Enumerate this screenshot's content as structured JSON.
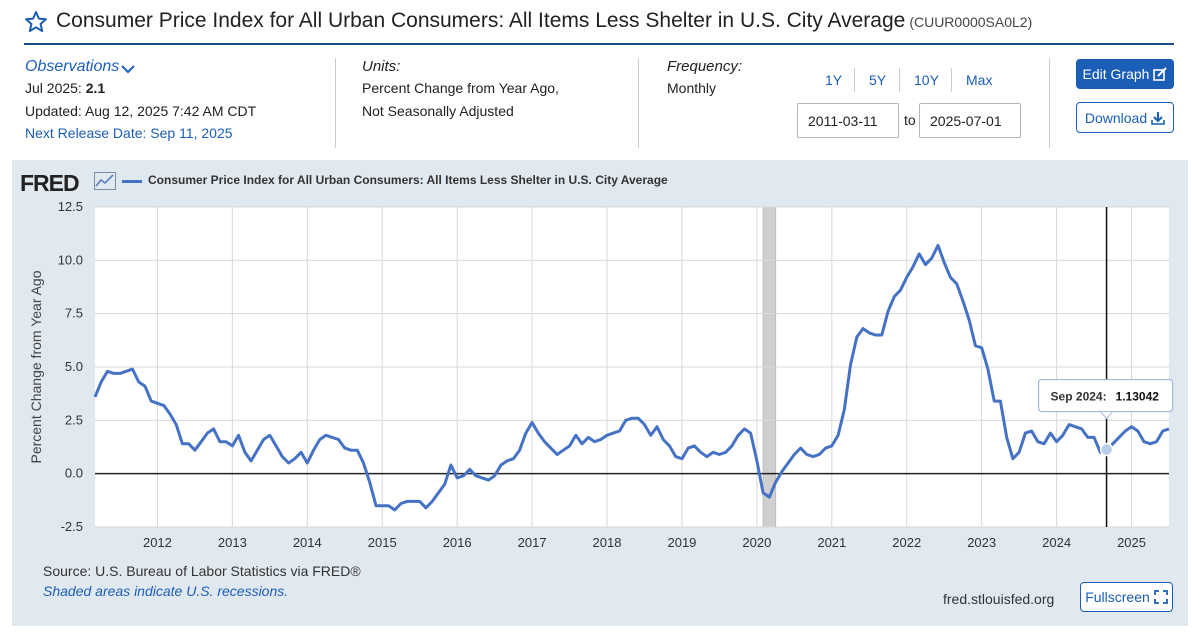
{
  "header": {
    "title": "Consumer Price Index for All Urban Consumers: All Items Less Shelter in U.S. City Average",
    "series_id": "(CUUR0000SA0L2)"
  },
  "observations": {
    "link_label": "Observations",
    "date_label": "Jul 2025:",
    "value": "2.1",
    "updated": "Updated: Aug 12, 2025 7:42 AM CDT",
    "next_release": "Next Release Date: Sep 11, 2025"
  },
  "units": {
    "heading": "Units:",
    "line1": "Percent Change from Year Ago,",
    "line2": "Not Seasonally Adjusted"
  },
  "frequency": {
    "heading": "Frequency:",
    "value": "Monthly"
  },
  "range": {
    "buttons": [
      "1Y",
      "5Y",
      "10Y",
      "Max"
    ],
    "start": "2011-03-11",
    "to_label": "to",
    "end": "2025-07-01"
  },
  "actions": {
    "edit_label": "Edit Graph",
    "download_label": "Download",
    "fullscreen_label": "Fullscreen"
  },
  "footer": {
    "source": "Source: U.S. Bureau of Labor Statistics via FRED®",
    "shaded_note": "Shaded areas indicate U.S. recessions.",
    "url": "fred.stlouisfed.org"
  },
  "logo_text": "FRED",
  "colors": {
    "accent": "#1b5eb8",
    "series": "#4572c4",
    "panel": "#e1e9f0"
  },
  "chart_data": {
    "type": "line",
    "title": "Consumer Price Index for All Urban Consumers: All Items Less Shelter in U.S. City Average",
    "xlabel": "",
    "ylabel": "Percent Change from Year Ago",
    "ylim": [
      -2.5,
      12.5
    ],
    "yticks": [
      "12.5",
      "10.0",
      "7.5",
      "5.0",
      "2.5",
      "0.0",
      "-2.5"
    ],
    "x_start": "2011-03",
    "x_end": "2025-07",
    "xtick_labels": [
      "2012",
      "2013",
      "2014",
      "2015",
      "2016",
      "2017",
      "2018",
      "2019",
      "2020",
      "2021",
      "2022",
      "2023",
      "2024",
      "2025"
    ],
    "recessions": [
      {
        "start": "2020-02",
        "end": "2020-04"
      }
    ],
    "tooltip": {
      "label": "Sep 2024:",
      "value": "1.13042",
      "date": "2024-09"
    },
    "series": [
      {
        "name": "Consumer Price Index for All Urban Consumers: All Items Less Shelter in U.S. City Average",
        "start": "2011-03",
        "values": [
          3.6,
          4.3,
          4.8,
          4.7,
          4.7,
          4.8,
          4.9,
          4.3,
          4.1,
          3.4,
          3.3,
          3.2,
          2.8,
          2.3,
          1.4,
          1.4,
          1.1,
          1.5,
          1.9,
          2.1,
          1.5,
          1.5,
          1.3,
          1.8,
          1.0,
          0.6,
          1.1,
          1.6,
          1.8,
          1.3,
          0.8,
          0.5,
          0.7,
          1.0,
          0.5,
          1.1,
          1.6,
          1.8,
          1.7,
          1.6,
          1.2,
          1.1,
          1.1,
          0.5,
          -0.4,
          -1.5,
          -1.5,
          -1.5,
          -1.7,
          -1.4,
          -1.3,
          -1.3,
          -1.3,
          -1.6,
          -1.3,
          -0.9,
          -0.5,
          0.4,
          -0.2,
          -0.1,
          0.2,
          -0.1,
          -0.2,
          -0.3,
          -0.1,
          0.4,
          0.6,
          0.7,
          1.1,
          1.9,
          2.4,
          1.9,
          1.5,
          1.2,
          0.9,
          1.1,
          1.3,
          1.8,
          1.4,
          1.7,
          1.5,
          1.6,
          1.8,
          1.9,
          2.0,
          2.5,
          2.6,
          2.6,
          2.3,
          1.8,
          2.2,
          1.6,
          1.3,
          0.8,
          0.7,
          1.2,
          1.3,
          1.0,
          0.8,
          1.0,
          0.9,
          1.0,
          1.3,
          1.8,
          2.1,
          1.9,
          0.6,
          -0.9,
          -1.1,
          -0.4,
          0.1,
          0.5,
          0.9,
          1.2,
          0.9,
          0.8,
          0.9,
          1.2,
          1.3,
          1.8,
          3.0,
          5.1,
          6.4,
          6.8,
          6.6,
          6.5,
          6.5,
          7.6,
          8.3,
          8.6,
          9.2,
          9.7,
          10.3,
          9.8,
          10.1,
          10.7,
          9.9,
          9.2,
          8.9,
          8.1,
          7.2,
          6.0,
          5.9,
          4.9,
          3.4,
          3.4,
          1.7,
          0.7,
          1.0,
          1.9,
          2.0,
          1.5,
          1.4,
          1.9,
          1.5,
          1.8,
          2.3,
          2.2,
          2.1,
          1.7,
          1.7,
          1.0,
          1.1,
          1.4,
          1.7,
          2.0,
          2.2,
          2.0,
          1.5,
          1.4,
          1.5,
          2.0,
          2.1
        ]
      }
    ]
  }
}
